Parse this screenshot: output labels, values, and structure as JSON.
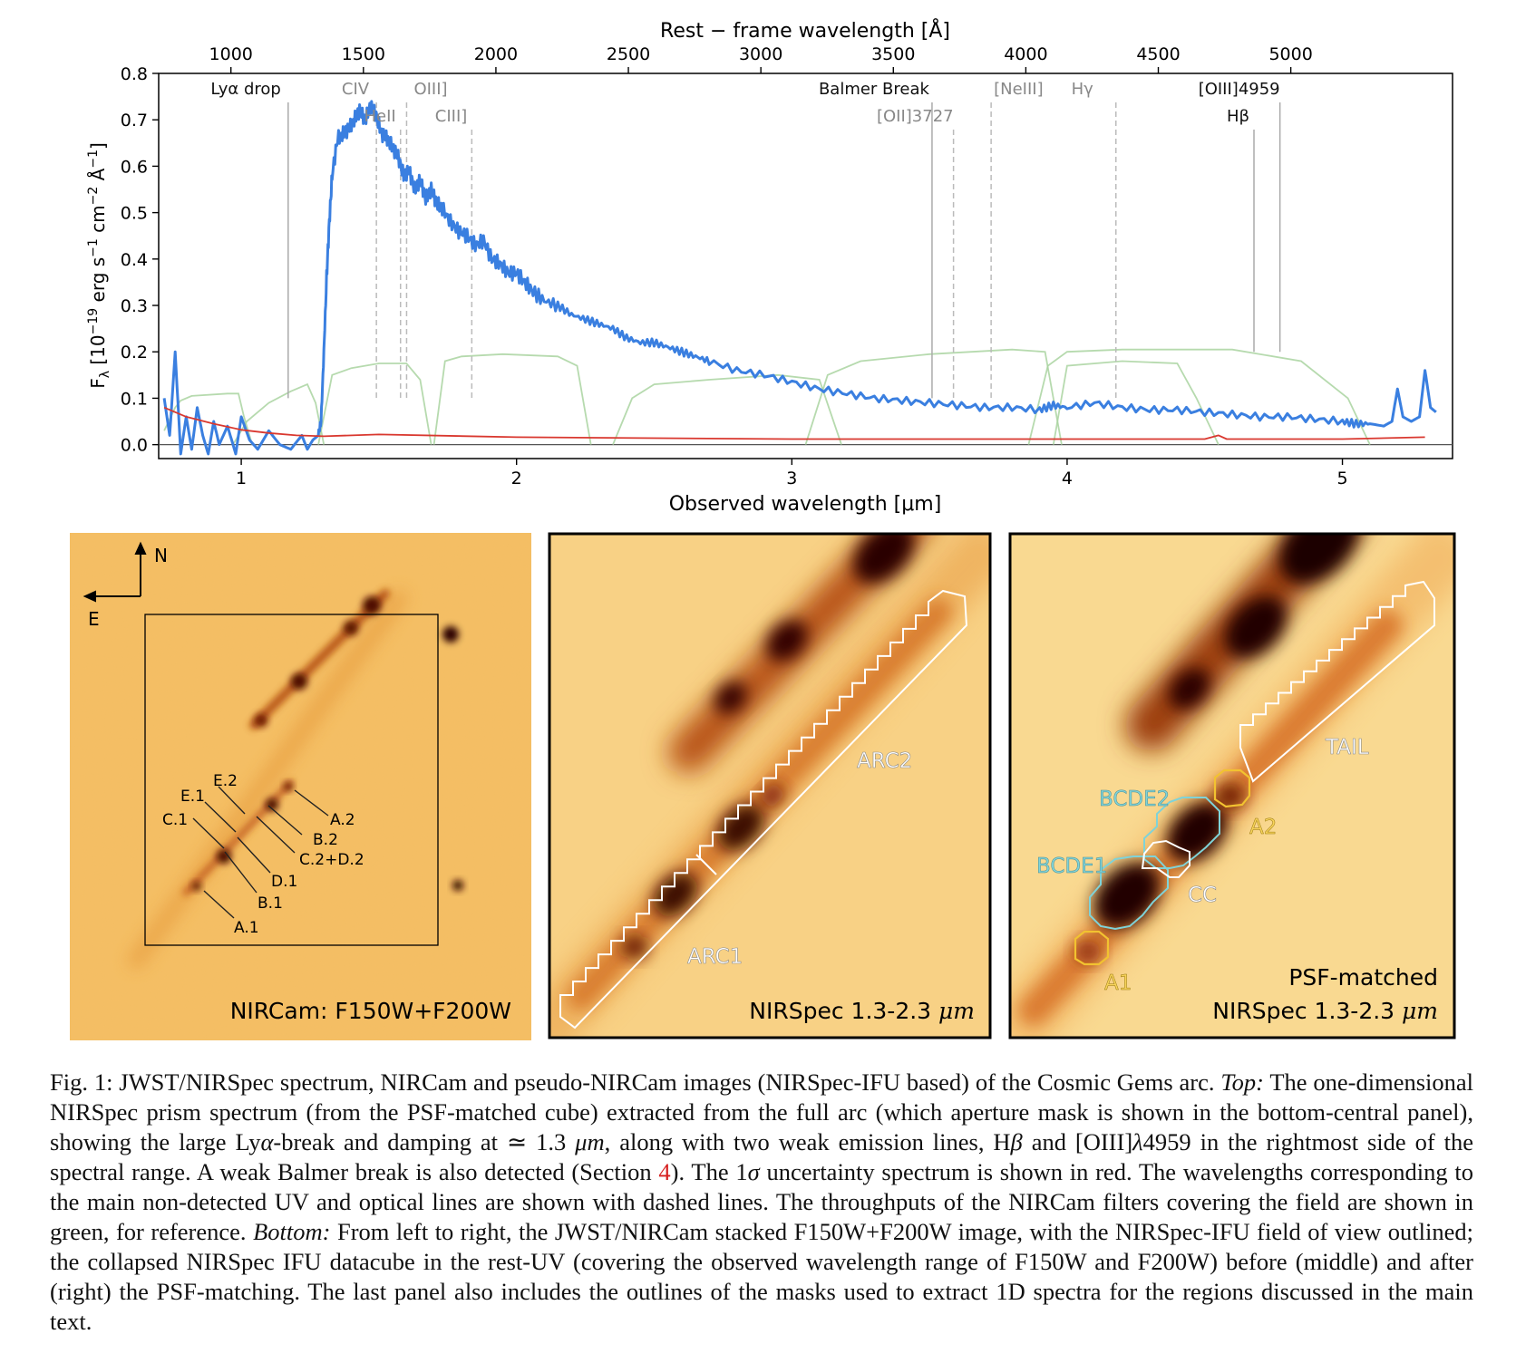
{
  "chart_data": {
    "type": "line",
    "top_axis_label": "Rest − frame wavelength [Å]",
    "top_ticks": [
      "1000",
      "1500",
      "2000",
      "2500",
      "3000",
      "3500",
      "4000",
      "4500",
      "5000"
    ],
    "top_tick_values": [
      1000,
      1500,
      2000,
      2500,
      3000,
      3500,
      4000,
      4500,
      5000
    ],
    "xlabel": "Observed wavelength [μm]",
    "x_ticks": [
      "1",
      "2",
      "3",
      "4",
      "5"
    ],
    "x_tick_values": [
      1,
      2,
      3,
      4,
      5
    ],
    "xlim": [
      0.7,
      5.4
    ],
    "ylabel": "F_λ [10^-19 erg s^-1 cm^-2 Å^-1]",
    "y_ticks": [
      "0.0",
      "0.1",
      "0.2",
      "0.3",
      "0.4",
      "0.5",
      "0.6",
      "0.7",
      "0.8"
    ],
    "y_tick_values": [
      0,
      0.1,
      0.2,
      0.3,
      0.4,
      0.5,
      0.6,
      0.7,
      0.8
    ],
    "ylim": [
      -0.03,
      0.8
    ],
    "redshift_factor": 9.625,
    "series": [
      {
        "role": "flux",
        "color": "#3a7fe0",
        "x": [
          0.72,
          0.74,
          0.76,
          0.78,
          0.8,
          0.82,
          0.84,
          0.86,
          0.88,
          0.9,
          0.92,
          0.95,
          0.98,
          1.0,
          1.03,
          1.06,
          1.1,
          1.14,
          1.18,
          1.22,
          1.24,
          1.26,
          1.28,
          1.29,
          1.3,
          1.31,
          1.32,
          1.33,
          1.35,
          1.37,
          1.39,
          1.41,
          1.43,
          1.45,
          1.47,
          1.49,
          1.51,
          1.53,
          1.55,
          1.57,
          1.59,
          1.61,
          1.63,
          1.65,
          1.67,
          1.69,
          1.71,
          1.73,
          1.76,
          1.79,
          1.82,
          1.85,
          1.88,
          1.91,
          1.94,
          1.97,
          2.0,
          2.03,
          2.06,
          2.1,
          2.15,
          2.2,
          2.25,
          2.3,
          2.35,
          2.4,
          2.45,
          2.5,
          2.55,
          2.6,
          2.65,
          2.7,
          2.8,
          2.9,
          3.0,
          3.1,
          3.2,
          3.3,
          3.4,
          3.5,
          3.6,
          3.7,
          3.8,
          3.9,
          3.95,
          4.0,
          4.1,
          4.2,
          4.3,
          4.4,
          4.5,
          4.6,
          4.7,
          4.8,
          4.9,
          5.0,
          5.05,
          5.1,
          5.15,
          5.18,
          5.2,
          5.22,
          5.25,
          5.28,
          5.3,
          5.32,
          5.34
        ],
        "y": [
          0.1,
          0.02,
          0.2,
          -0.02,
          0.06,
          -0.01,
          0.08,
          0.02,
          -0.02,
          0.05,
          0.0,
          0.04,
          -0.02,
          0.06,
          0.01,
          -0.01,
          0.03,
          0.0,
          -0.01,
          0.02,
          -0.01,
          0.01,
          0.02,
          0.05,
          0.2,
          0.36,
          0.48,
          0.58,
          0.66,
          0.67,
          0.68,
          0.7,
          0.72,
          0.7,
          0.73,
          0.71,
          0.67,
          0.66,
          0.64,
          0.62,
          0.58,
          0.59,
          0.55,
          0.57,
          0.53,
          0.55,
          0.52,
          0.51,
          0.48,
          0.46,
          0.45,
          0.43,
          0.44,
          0.4,
          0.39,
          0.37,
          0.37,
          0.35,
          0.33,
          0.31,
          0.3,
          0.28,
          0.27,
          0.26,
          0.25,
          0.23,
          0.22,
          0.22,
          0.21,
          0.2,
          0.19,
          0.18,
          0.16,
          0.15,
          0.135,
          0.12,
          0.11,
          0.1,
          0.095,
          0.09,
          0.085,
          0.08,
          0.08,
          0.075,
          0.085,
          0.08,
          0.09,
          0.08,
          0.075,
          0.075,
          0.07,
          0.065,
          0.06,
          0.06,
          0.055,
          0.05,
          0.045,
          0.045,
          0.04,
          0.05,
          0.12,
          0.06,
          0.05,
          0.06,
          0.16,
          0.08,
          0.07
        ]
      },
      {
        "role": "uncertainty",
        "color": "#d9382f",
        "x": [
          0.72,
          0.8,
          0.9,
          1.0,
          1.1,
          1.2,
          1.3,
          1.5,
          2.0,
          3.0,
          4.0,
          4.5,
          4.55,
          4.58,
          4.6,
          5.0,
          5.3
        ],
        "y": [
          0.08,
          0.06,
          0.045,
          0.032,
          0.025,
          0.02,
          0.018,
          0.022,
          0.016,
          0.012,
          0.012,
          0.012,
          0.02,
          0.012,
          0.012,
          0.012,
          0.016
        ]
      }
    ],
    "filters": [
      {
        "x": [
          0.72,
          0.76,
          0.78,
          0.82,
          0.95,
          0.99,
          1.01,
          1.04
        ],
        "y": [
          0.03,
          0.08,
          0.095,
          0.105,
          0.11,
          0.11,
          0.06,
          0.0
        ]
      },
      {
        "x": [
          0.97,
          1.02,
          1.1,
          1.18,
          1.24,
          1.27,
          1.3
        ],
        "y": [
          0.0,
          0.05,
          0.09,
          0.115,
          0.13,
          0.09,
          0.0
        ]
      },
      {
        "x": [
          1.28,
          1.33,
          1.4,
          1.5,
          1.6,
          1.65,
          1.69
        ],
        "y": [
          0.0,
          0.15,
          0.165,
          0.175,
          0.175,
          0.14,
          0.0
        ]
      },
      {
        "x": [
          1.7,
          1.74,
          1.8,
          1.95,
          2.15,
          2.22,
          2.27
        ],
        "y": [
          0.0,
          0.18,
          0.19,
          0.195,
          0.19,
          0.17,
          0.0
        ]
      },
      {
        "x": [
          2.35,
          2.42,
          2.5,
          2.7,
          2.95,
          3.1,
          3.18
        ],
        "y": [
          0.0,
          0.1,
          0.13,
          0.14,
          0.15,
          0.14,
          0.0
        ]
      },
      {
        "x": [
          3.05,
          3.13,
          3.25,
          3.5,
          3.8,
          3.92,
          3.98
        ],
        "y": [
          0.0,
          0.15,
          0.18,
          0.195,
          0.205,
          0.2,
          0.0
        ]
      },
      {
        "x": [
          3.86,
          3.93,
          4.0,
          4.2,
          4.4,
          4.6,
          4.85,
          5.02,
          5.1
        ],
        "y": [
          0.0,
          0.17,
          0.2,
          0.205,
          0.205,
          0.205,
          0.18,
          0.1,
          0.0
        ]
      },
      {
        "x": [
          3.95,
          4.0,
          4.2,
          4.4,
          4.47,
          4.55
        ],
        "y": [
          0.0,
          0.17,
          0.18,
          0.175,
          0.1,
          0.0
        ]
      }
    ],
    "line_markers": [
      {
        "label": "Lyα drop",
        "rest": 1216,
        "style": "solid",
        "row": 1
      },
      {
        "label": "CIV",
        "rest": 1549,
        "style": "dashed",
        "row": 1
      },
      {
        "label": "HeII",
        "rest": 1640,
        "style": "dashed",
        "row": 2
      },
      {
        "label": "OIII]",
        "rest": 1663,
        "style": "dashed",
        "row": 1
      },
      {
        "label": "CIII]",
        "rest": 1909,
        "style": "dashed",
        "row": 2
      },
      {
        "label": "Balmer Break",
        "rest": 3646,
        "style": "solid",
        "row": 1
      },
      {
        "label": "[OII]3727",
        "rest": 3727,
        "style": "dashed",
        "row": 2
      },
      {
        "label": "[NeIII]",
        "rest": 3869,
        "style": "dashed",
        "row": 1
      },
      {
        "label": "Hγ",
        "rest": 4340,
        "style": "dashed",
        "row": 1
      },
      {
        "label": "Hβ",
        "rest": 4861,
        "style": "solid",
        "row": 2
      },
      {
        "label": "[OIII]4959",
        "rest": 4959,
        "style": "solid",
        "row": 1
      }
    ]
  },
  "panels": {
    "left": {
      "label": "NIRCam: F150W+F200W",
      "compass_north": "N",
      "compass_east": "E",
      "clumps": [
        "E.2",
        "E.1",
        "C.1",
        "A.2",
        "B.2",
        "C.2+D.2",
        "D.1",
        "B.1",
        "A.1"
      ]
    },
    "middle": {
      "label_prefix": "NIRSpec 1.3-2.3 ",
      "label_unit": "μm",
      "regions": [
        "ARC2",
        "ARC1"
      ]
    },
    "right": {
      "label_line1": "PSF-matched",
      "label_prefix": "NIRSpec 1.3-2.3 ",
      "label_unit": "μm",
      "regions": {
        "tail": "TAIL",
        "bcde2": "BCDE2",
        "bcde1": "BCDE1",
        "a2": "A2",
        "cc": "CC",
        "a1": "A1"
      }
    }
  },
  "caption": {
    "lead": "Fig. 1: JWST/NIRSpec spectrum, NIRCam and pseudo-NIRCam images (NIRSpec-IFU based) of the Cosmic Gems arc.",
    "top_label": "Top:",
    "top_text_1": "The one-dimensional NIRSpec prism spectrum (from the PSF-matched cube) extracted from the full arc (which aperture mask is shown in the bottom-central panel), showing the large Ly",
    "alpha": "α",
    "top_text_2": "-break and damping at ≃ 1.3",
    "um": "μm",
    "top_text_3": ", along with two weak emission lines, H",
    "beta": "β",
    "top_text_4": "and [O",
    "oiii": "III",
    "top_text_5": "]",
    "lambda": "λ",
    "top_text_6": "4959 in the rightmost side of the spectral range. A weak Balmer break is also detected (Section",
    "section_ref": "4",
    "top_text_7": "). The 1",
    "sigma": "σ",
    "top_text_8": "uncertainty spectrum is shown in red. The wavelengths corresponding to the main non-detected UV and optical lines are shown with dashed lines. The throughputs of the NIRCam filters covering the field are shown in green, for reference.",
    "bottom_label": "Bottom:",
    "bottom_text": "From left to right, the JWST/NIRCam stacked F150W+F200W image, with the NIRSpec-IFU field of view outlined; the collapsed NIRSpec IFU datacube in the rest-UV (covering the observed wavelength range of F150W and F200W) before (middle) and after (right) the PSF-matching. The last panel also includes the outlines of the masks used to extract 1D spectra for the regions discussed in the main text."
  }
}
